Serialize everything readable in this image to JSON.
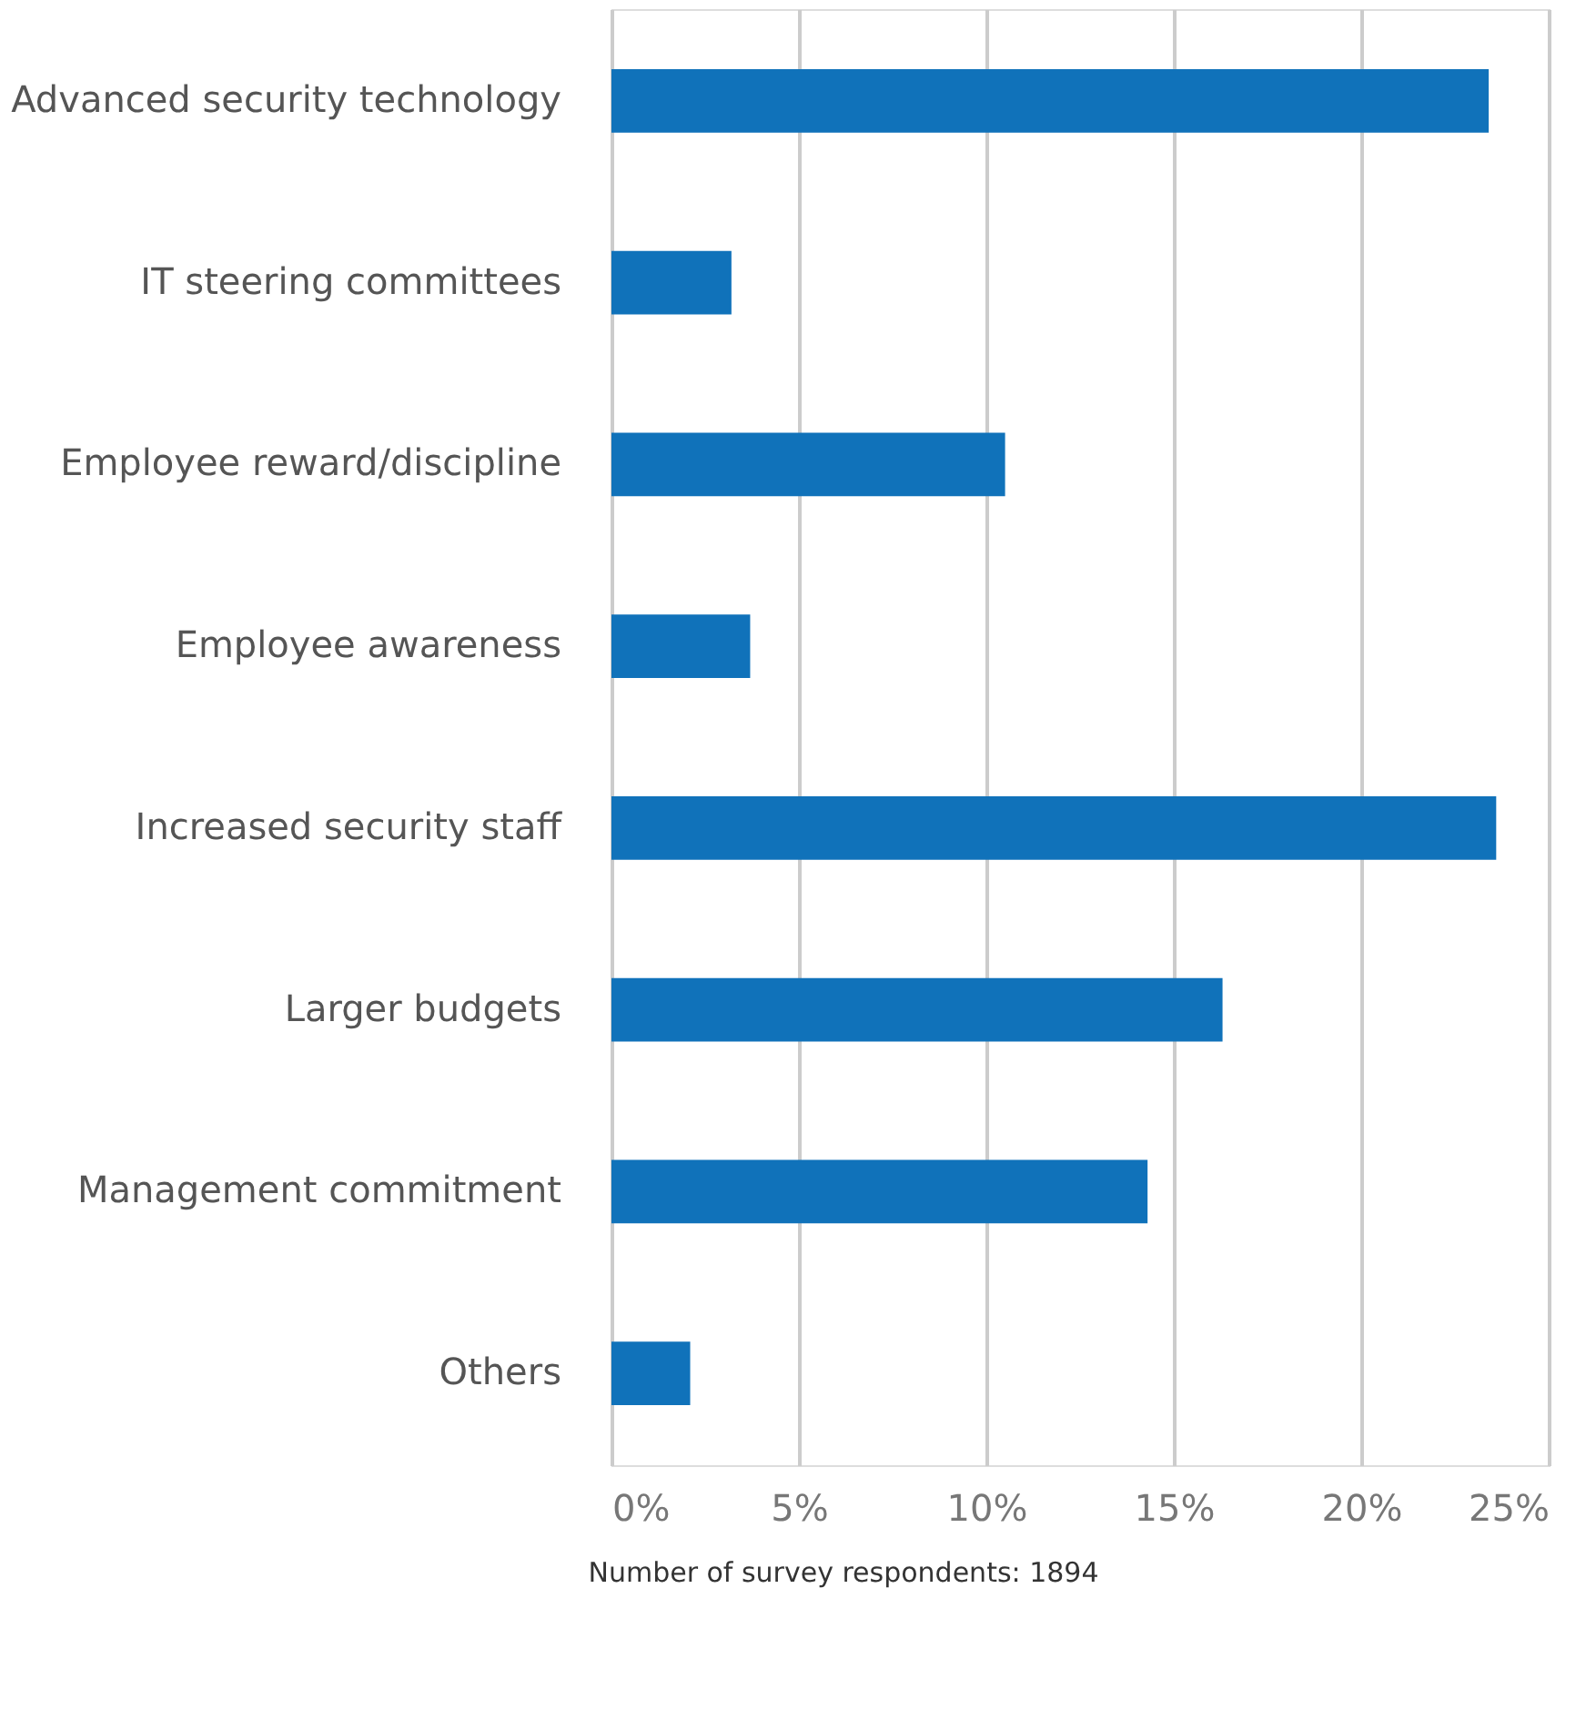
{
  "chart_data": {
    "type": "bar",
    "orientation": "horizontal",
    "categories": [
      "Advanced security technology",
      "IT steering committees",
      "Employee reward/discipline",
      "Employee awareness",
      "Increased security staff",
      "Larger budgets",
      "Management commitment",
      "Others"
    ],
    "values": [
      23.4,
      3.2,
      10.5,
      3.7,
      23.6,
      16.3,
      14.3,
      2.1
    ],
    "color": "#1072ba",
    "xlim": [
      0,
      25
    ],
    "xticks": [
      {
        "value": 0,
        "label": "0%"
      },
      {
        "value": 5,
        "label": "5%"
      },
      {
        "value": 10,
        "label": "10%"
      },
      {
        "value": 15,
        "label": "15%"
      },
      {
        "value": 20,
        "label": "20%"
      },
      {
        "value": 25,
        "label": "25%"
      }
    ],
    "grid": "x",
    "annotations": [
      "Number of survey respondents: 1894"
    ]
  }
}
